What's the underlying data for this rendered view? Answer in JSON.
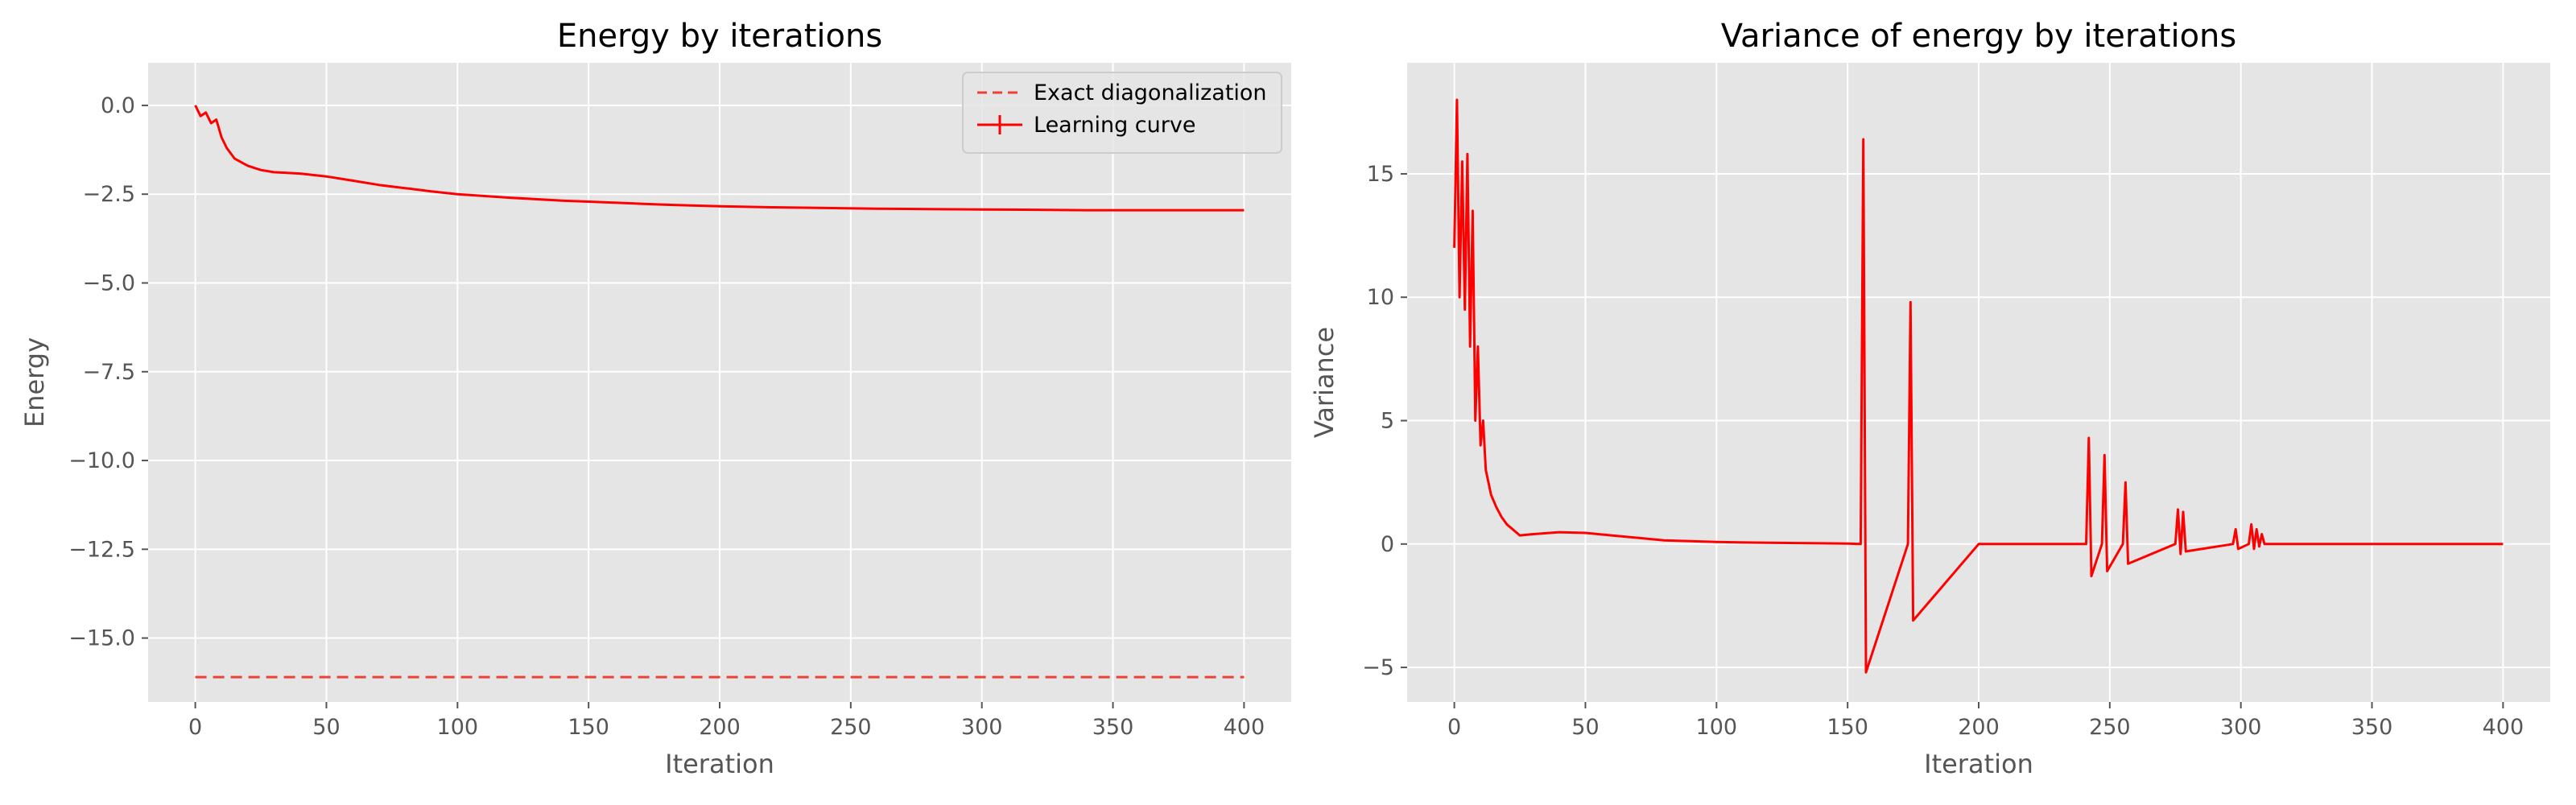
{
  "chart_data": [
    {
      "type": "line",
      "title": "Energy by iterations",
      "xlabel": "Iteration",
      "ylabel": "Energy",
      "xlim": [
        -18,
        418
      ],
      "ylim": [
        -16.8,
        1.2
      ],
      "xticks": [
        0,
        50,
        100,
        150,
        200,
        250,
        300,
        350,
        400
      ],
      "yticks": [
        0.0,
        -2.5,
        -5.0,
        -7.5,
        -10.0,
        -12.5,
        -15.0
      ],
      "ytick_labels": [
        "0.0",
        "−2.5",
        "−5.0",
        "−7.5",
        "−10.0",
        "−12.5",
        "−15.0"
      ],
      "xtick_labels": [
        "0",
        "50",
        "100",
        "150",
        "200",
        "250",
        "300",
        "350",
        "400"
      ],
      "grid": true,
      "legend_position": "top-right",
      "series": [
        {
          "name": "Exact diagonalization",
          "style": "dashed",
          "color": "#ee4035",
          "x": [
            0,
            400
          ],
          "y": [
            -16.1,
            -16.1
          ]
        },
        {
          "name": "Learning curve",
          "style": "solid",
          "color": "#ff0000",
          "x": [
            0,
            2,
            4,
            6,
            8,
            10,
            12,
            15,
            20,
            25,
            30,
            40,
            50,
            60,
            70,
            80,
            90,
            100,
            120,
            140,
            150,
            160,
            170,
            180,
            200,
            220,
            240,
            260,
            280,
            300,
            320,
            340,
            360,
            380,
            400
          ],
          "y": [
            0.0,
            -0.3,
            -0.2,
            -0.5,
            -0.4,
            -0.9,
            -1.2,
            -1.5,
            -1.7,
            -1.82,
            -1.88,
            -1.92,
            -2.0,
            -2.12,
            -2.24,
            -2.33,
            -2.42,
            -2.5,
            -2.6,
            -2.68,
            -2.71,
            -2.74,
            -2.77,
            -2.8,
            -2.84,
            -2.87,
            -2.89,
            -2.91,
            -2.92,
            -2.93,
            -2.94,
            -2.95,
            -2.95,
            -2.95,
            -2.95
          ]
        }
      ]
    },
    {
      "type": "line",
      "title": "Variance of energy by iterations",
      "xlabel": "Iteration",
      "ylabel": "Variance",
      "xlim": [
        -18,
        418
      ],
      "ylim": [
        -6.4,
        19.5
      ],
      "xticks": [
        0,
        50,
        100,
        150,
        200,
        250,
        300,
        350,
        400
      ],
      "yticks": [
        15,
        10,
        5,
        0,
        -5
      ],
      "xtick_labels": [
        "0",
        "50",
        "100",
        "150",
        "200",
        "250",
        "300",
        "350",
        "400"
      ],
      "ytick_labels": [
        "15",
        "10",
        "5",
        "0",
        "−5"
      ],
      "grid": true,
      "series": [
        {
          "color": "#ff0000",
          "x": [
            0,
            1,
            2,
            3,
            4,
            5,
            6,
            7,
            8,
            9,
            10,
            11,
            12,
            13,
            14,
            16,
            18,
            20,
            25,
            30,
            40,
            50,
            60,
            80,
            100,
            120,
            150,
            155,
            156,
            157,
            173,
            174,
            175,
            200,
            241,
            242,
            243,
            247,
            248,
            249,
            255,
            256,
            257,
            275,
            276,
            277,
            278,
            279,
            297,
            298,
            299,
            303,
            304,
            305,
            306,
            307,
            308,
            309,
            310,
            350,
            400
          ],
          "y": [
            12,
            18,
            10,
            15.5,
            9.5,
            15.8,
            8,
            13.5,
            5,
            8,
            4,
            5,
            3,
            2.5,
            2,
            1.5,
            1.1,
            0.8,
            0.35,
            0.4,
            0.48,
            0.45,
            0.35,
            0.15,
            0.08,
            0.05,
            0.02,
            0,
            16.4,
            -5.2,
            0,
            9.8,
            -3.1,
            0,
            0,
            4.3,
            -1.3,
            0,
            3.6,
            -1.1,
            0,
            2.5,
            -0.8,
            0,
            1.4,
            -0.4,
            1.3,
            -0.3,
            0,
            0.6,
            -0.2,
            0,
            0.8,
            -0.2,
            0.6,
            -0.1,
            0.4,
            0,
            0,
            0,
            0
          ]
        }
      ]
    }
  ]
}
